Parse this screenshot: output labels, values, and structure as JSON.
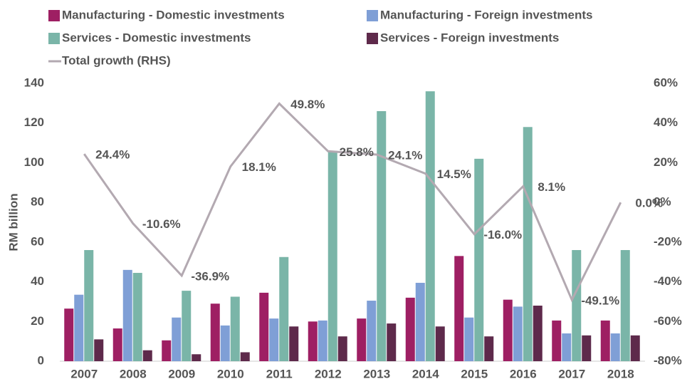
{
  "chart_data": {
    "type": "bar",
    "y_label": "RM billion",
    "categories": [
      "2007",
      "2008",
      "2009",
      "2010",
      "2011",
      "2012",
      "2013",
      "2014",
      "2015",
      "2016",
      "2017",
      "2018"
    ],
    "series": [
      {
        "name": "Manufacturing - Domestic investments",
        "color": "#9e1f63",
        "values": [
          26.5,
          16.5,
          10.5,
          29,
          34.5,
          20,
          21.5,
          32,
          53,
          31,
          20.5,
          20.5
        ]
      },
      {
        "name": "Manufacturing - Foreign investments",
        "color": "#7f9fd6",
        "values": [
          33.5,
          46,
          22,
          18,
          21.5,
          20.5,
          30.5,
          39.5,
          22,
          27.5,
          14,
          14
        ]
      },
      {
        "name": "Services - Domestic investments",
        "color": "#7ab5a8",
        "values": [
          56,
          44.5,
          35.5,
          32.5,
          52.5,
          106,
          126,
          136,
          102,
          118,
          56,
          56
        ]
      },
      {
        "name": "Services - Foreign investments",
        "color": "#5e2a4b",
        "values": [
          11,
          5.5,
          3.5,
          4.5,
          17.5,
          12.5,
          19,
          17.5,
          12.5,
          28,
          13,
          13
        ]
      },
      {
        "name": "Total growth (RHS)",
        "type": "line",
        "axis": "y2",
        "color": "#b3a9b1",
        "values": [
          24.4,
          -10.6,
          -36.9,
          18.1,
          49.8,
          25.8,
          24.1,
          14.5,
          -16.0,
          8.1,
          -49.1,
          0.0
        ],
        "value_labels": [
          "24.4%",
          "-10.6%",
          "-36.9%",
          "18.1%",
          "49.8%",
          "25.8%",
          "24.1%",
          "14.5%",
          "-16.0%",
          "8.1%",
          "-49.1%",
          "0.0%"
        ]
      }
    ],
    "ylim": [
      0,
      140
    ],
    "yticks": [
      0,
      20,
      40,
      60,
      80,
      100,
      120,
      140
    ],
    "y2lim": [
      -80,
      60
    ],
    "y2ticks": [
      {
        "value": -80,
        "label": "-80%"
      },
      {
        "value": -60,
        "label": "-60%"
      },
      {
        "value": -40,
        "label": "-40%"
      },
      {
        "value": -20,
        "label": "-20%"
      },
      {
        "value": 0,
        "label": "0%"
      },
      {
        "value": 20,
        "label": "20%"
      },
      {
        "value": 40,
        "label": "40%"
      },
      {
        "value": 60,
        "label": "60%"
      }
    ]
  }
}
